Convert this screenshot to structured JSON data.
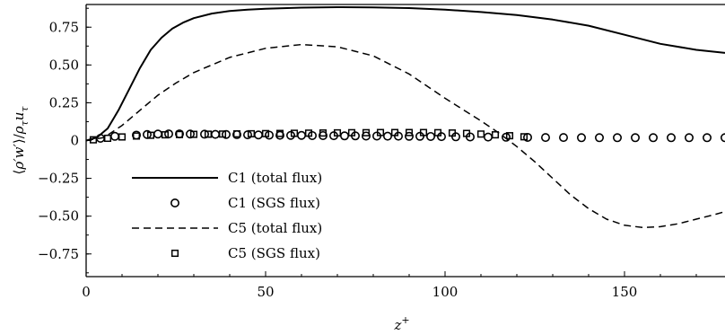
{
  "chart_data": {
    "type": "line",
    "xlabel": "z+",
    "ylabel": "⟨ρ′w′⟩/ρτuτ",
    "xlim": [
      0,
      178
    ],
    "ylim": [
      -0.9,
      0.9
    ],
    "x_ticks": [
      0,
      50,
      100,
      150
    ],
    "x_tick_labels": [
      "0",
      "50",
      "100",
      "150"
    ],
    "y_ticks": [
      0.75,
      0.5,
      0.25,
      0,
      -0.25,
      -0.5,
      -0.75
    ],
    "y_tick_labels": [
      "0.75",
      "0.50",
      "0.25",
      "0",
      "−0.25",
      "−0.50",
      "−0.75"
    ],
    "grid": false,
    "legend_position": "lower-left",
    "series": [
      {
        "name": "C1 (total flux)",
        "style": "solid-line",
        "x": [
          0,
          3,
          6,
          9,
          12,
          15,
          18,
          21,
          24,
          27,
          30,
          35,
          40,
          45,
          50,
          60,
          70,
          80,
          90,
          100,
          110,
          120,
          130,
          140,
          150,
          160,
          170,
          178
        ],
        "y": [
          0.0,
          0.02,
          0.08,
          0.2,
          0.34,
          0.48,
          0.6,
          0.68,
          0.74,
          0.78,
          0.81,
          0.84,
          0.857,
          0.866,
          0.872,
          0.879,
          0.882,
          0.881,
          0.876,
          0.866,
          0.85,
          0.83,
          0.8,
          0.76,
          0.7,
          0.64,
          0.6,
          0.58
        ]
      },
      {
        "name": "C1 (SGS flux)",
        "style": "circle-markers",
        "x": [
          4,
          8,
          14,
          17,
          20,
          23,
          26,
          29,
          33,
          36,
          39,
          42,
          45,
          48,
          51,
          54,
          57,
          60,
          63,
          66,
          69,
          72,
          75,
          78,
          81,
          84,
          87,
          90,
          93,
          96,
          99,
          103,
          107,
          112,
          117,
          123,
          128,
          133,
          138,
          143,
          148,
          153,
          158,
          163,
          168,
          173,
          178
        ],
        "y": [
          0.015,
          0.028,
          0.036,
          0.04,
          0.043,
          0.044,
          0.044,
          0.043,
          0.042,
          0.041,
          0.04,
          0.039,
          0.038,
          0.037,
          0.036,
          0.035,
          0.034,
          0.034,
          0.033,
          0.033,
          0.032,
          0.031,
          0.031,
          0.03,
          0.03,
          0.029,
          0.029,
          0.028,
          0.028,
          0.027,
          0.026,
          0.025,
          0.024,
          0.023,
          0.022,
          0.021,
          0.02,
          0.02,
          0.019,
          0.019,
          0.019,
          0.019,
          0.019,
          0.019,
          0.019,
          0.019,
          0.019
        ]
      },
      {
        "name": "C5 (total flux)",
        "style": "dashed-line",
        "x": [
          0,
          5,
          10,
          15,
          20,
          25,
          30,
          40,
          50,
          60,
          70,
          80,
          90,
          100,
          110,
          115,
          120,
          125,
          130,
          135,
          140,
          145,
          150,
          155,
          160,
          165,
          170,
          175,
          178
        ],
        "y": [
          0.0,
          0.02,
          0.1,
          0.2,
          0.3,
          0.38,
          0.45,
          0.55,
          0.61,
          0.635,
          0.62,
          0.56,
          0.44,
          0.28,
          0.13,
          0.05,
          -0.04,
          -0.14,
          -0.25,
          -0.36,
          -0.45,
          -0.52,
          -0.56,
          -0.575,
          -0.57,
          -0.55,
          -0.52,
          -0.49,
          -0.47
        ]
      },
      {
        "name": "C5 (SGS flux)",
        "style": "square-markers",
        "x": [
          2,
          6,
          10,
          14,
          18,
          22,
          26,
          30,
          34,
          38,
          42,
          46,
          50,
          54,
          58,
          62,
          66,
          70,
          74,
          78,
          82,
          86,
          90,
          94,
          98,
          102,
          106,
          110,
          114,
          118,
          122
        ],
        "y": [
          0.005,
          0.015,
          0.024,
          0.03,
          0.035,
          0.038,
          0.04,
          0.041,
          0.042,
          0.043,
          0.044,
          0.045,
          0.046,
          0.047,
          0.048,
          0.049,
          0.05,
          0.051,
          0.052,
          0.052,
          0.053,
          0.053,
          0.053,
          0.053,
          0.052,
          0.05,
          0.047,
          0.043,
          0.038,
          0.032,
          0.025
        ]
      }
    ]
  }
}
